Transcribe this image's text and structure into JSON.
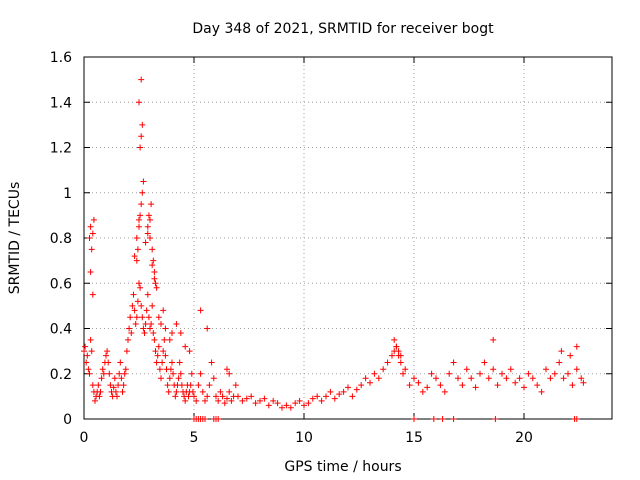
{
  "chart_data": {
    "type": "scatter",
    "title": "Day 348 of 2021, SRMTID for receiver bogt",
    "xlabel": "GPS time / hours",
    "ylabel": "SRMTID / TECUs",
    "xlim": [
      0,
      24
    ],
    "ylim": [
      0,
      1.6
    ],
    "x_ticks": [
      0,
      5,
      10,
      15,
      20
    ],
    "y_ticks": [
      0,
      0.2,
      0.4,
      0.6,
      0.8,
      1,
      1.2,
      1.4,
      1.6
    ],
    "x_tick_labels": [
      "0",
      "5",
      "10",
      "15",
      "20"
    ],
    "y_tick_labels": [
      "0",
      "0.2",
      "0.4",
      "0.6",
      "0.8",
      "1",
      "1.2",
      "1.4",
      "1.6"
    ],
    "grid": true,
    "marker": "+",
    "marker_color": "#ff0000",
    "series": [
      {
        "name": "SRMTID",
        "x": [
          0.0,
          0.05,
          0.1,
          0.15,
          0.2,
          0.25,
          0.3,
          0.35,
          0.4,
          0.45,
          0.5,
          0.55,
          0.6,
          0.65,
          0.7,
          0.75,
          0.8,
          0.85,
          0.9,
          0.95,
          1.0,
          1.05,
          1.1,
          1.15,
          1.2,
          1.25,
          1.3,
          1.35,
          1.4,
          1.45,
          1.5,
          1.55,
          1.6,
          1.65,
          1.7,
          1.75,
          1.8,
          1.85,
          1.9,
          1.95,
          2.0,
          2.05,
          2.1,
          2.15,
          2.2,
          2.25,
          2.3,
          2.35,
          2.4,
          2.45,
          2.5,
          2.55,
          2.6,
          2.65,
          2.7,
          2.75,
          2.8,
          2.85,
          2.9,
          2.95,
          3.0,
          3.05,
          3.1,
          3.15,
          3.2,
          3.25,
          3.3,
          3.35,
          3.4,
          3.45,
          3.5,
          3.55,
          3.6,
          3.65,
          3.7,
          3.75,
          3.8,
          3.85,
          3.9,
          3.95,
          4.0,
          4.05,
          4.1,
          4.15,
          4.2,
          4.25,
          4.3,
          4.35,
          4.4,
          4.45,
          4.5,
          4.55,
          4.6,
          4.65,
          4.7,
          4.75,
          4.8,
          4.85,
          4.9,
          4.95,
          5.0,
          5.1,
          5.2,
          5.3,
          5.4,
          5.5,
          5.6,
          5.7,
          5.8,
          5.9,
          6.0,
          6.1,
          6.2,
          6.3,
          6.4,
          6.5,
          6.6,
          6.7,
          6.8,
          6.9,
          7.0,
          7.2,
          7.4,
          7.6,
          7.8,
          8.0,
          8.2,
          8.4,
          8.6,
          8.8,
          9.0,
          9.2,
          9.4,
          9.6,
          9.8,
          10.0,
          10.2,
          10.4,
          10.6,
          10.8,
          11.0,
          11.2,
          11.4,
          11.6,
          11.8,
          12.0,
          12.2,
          12.4,
          12.6,
          12.8,
          13.0,
          13.2,
          13.4,
          13.6,
          13.8,
          14.0,
          14.1,
          14.2,
          14.3,
          14.4,
          14.5,
          14.6,
          14.8,
          15.0,
          15.2,
          15.4,
          15.6,
          15.8,
          16.0,
          16.2,
          16.4,
          16.6,
          16.8,
          17.0,
          17.2,
          17.4,
          17.6,
          17.8,
          18.0,
          18.2,
          18.4,
          18.6,
          18.8,
          19.0,
          19.2,
          19.4,
          19.6,
          19.8,
          20.0,
          20.2,
          20.4,
          20.6,
          20.8,
          21.0,
          21.2,
          21.4,
          21.6,
          21.8,
          22.0,
          22.2,
          22.4,
          22.6,
          22.7,
          0.25,
          0.3,
          0.35,
          0.4,
          0.45,
          0.3,
          0.4,
          2.4,
          2.45,
          2.5,
          2.55,
          2.6,
          2.65,
          2.7,
          2.55,
          2.6,
          2.65,
          2.5,
          2.6,
          2.9,
          2.95,
          3.0,
          3.05,
          3.1,
          3.15,
          3.2,
          3.25,
          2.8,
          2.9,
          3.0,
          3.1,
          3.2,
          3.3,
          2.3,
          2.4,
          2.5,
          3.4,
          3.5,
          3.6,
          3.7,
          3.9,
          4.0,
          4.2,
          4.4,
          4.6,
          4.8,
          5.3,
          5.6,
          6.5,
          6.6,
          14.1,
          14.2,
          14.3,
          14.4,
          18.6,
          21.7,
          22.1,
          22.4,
          5.0,
          5.1,
          5.2,
          5.3,
          5.4,
          5.5,
          5.9,
          6.0,
          6.1,
          15.0,
          15.9,
          16.3,
          16.8,
          18.7,
          22.3,
          22.4
        ],
        "y": [
          0.3,
          0.32,
          0.25,
          0.28,
          0.22,
          0.2,
          0.35,
          0.3,
          0.15,
          0.12,
          0.08,
          0.1,
          0.12,
          0.15,
          0.1,
          0.12,
          0.18,
          0.22,
          0.2,
          0.25,
          0.28,
          0.3,
          0.25,
          0.2,
          0.15,
          0.12,
          0.1,
          0.14,
          0.18,
          0.12,
          0.1,
          0.15,
          0.2,
          0.25,
          0.18,
          0.12,
          0.15,
          0.2,
          0.22,
          0.3,
          0.35,
          0.4,
          0.45,
          0.38,
          0.5,
          0.55,
          0.48,
          0.42,
          0.45,
          0.52,
          0.6,
          0.58,
          0.5,
          0.45,
          0.4,
          0.38,
          0.42,
          0.48,
          0.55,
          0.45,
          0.4,
          0.42,
          0.5,
          0.38,
          0.35,
          0.3,
          0.25,
          0.28,
          0.32,
          0.22,
          0.18,
          0.25,
          0.3,
          0.35,
          0.28,
          0.22,
          0.15,
          0.12,
          0.18,
          0.22,
          0.25,
          0.2,
          0.15,
          0.1,
          0.12,
          0.15,
          0.18,
          0.25,
          0.2,
          0.15,
          0.12,
          0.1,
          0.08,
          0.12,
          0.15,
          0.1,
          0.12,
          0.15,
          0.2,
          0.12,
          0.1,
          0.08,
          0.15,
          0.2,
          0.12,
          0.08,
          0.1,
          0.15,
          0.25,
          0.18,
          0.1,
          0.08,
          0.12,
          0.1,
          0.07,
          0.09,
          0.12,
          0.08,
          0.1,
          0.15,
          0.1,
          0.08,
          0.09,
          0.1,
          0.07,
          0.08,
          0.09,
          0.06,
          0.08,
          0.07,
          0.05,
          0.06,
          0.05,
          0.07,
          0.08,
          0.06,
          0.07,
          0.09,
          0.1,
          0.08,
          0.1,
          0.12,
          0.09,
          0.11,
          0.12,
          0.14,
          0.1,
          0.13,
          0.15,
          0.18,
          0.16,
          0.2,
          0.18,
          0.22,
          0.25,
          0.28,
          0.3,
          0.32,
          0.28,
          0.25,
          0.2,
          0.22,
          0.15,
          0.18,
          0.16,
          0.12,
          0.14,
          0.2,
          0.18,
          0.15,
          0.12,
          0.2,
          0.25,
          0.18,
          0.15,
          0.22,
          0.18,
          0.14,
          0.2,
          0.25,
          0.18,
          0.22,
          0.15,
          0.2,
          0.18,
          0.22,
          0.16,
          0.18,
          0.14,
          0.2,
          0.18,
          0.15,
          0.12,
          0.22,
          0.18,
          0.2,
          0.25,
          0.18,
          0.2,
          0.15,
          0.22,
          0.18,
          0.16,
          0.8,
          0.85,
          0.75,
          0.82,
          0.88,
          0.65,
          0.55,
          0.7,
          0.75,
          0.85,
          0.9,
          0.95,
          1.0,
          1.05,
          1.2,
          1.25,
          1.3,
          1.4,
          1.5,
          0.85,
          0.9,
          0.8,
          0.95,
          0.75,
          0.7,
          0.65,
          0.6,
          0.78,
          0.82,
          0.88,
          0.68,
          0.62,
          0.58,
          0.72,
          0.8,
          0.88,
          0.45,
          0.42,
          0.48,
          0.4,
          0.35,
          0.38,
          0.42,
          0.38,
          0.32,
          0.3,
          0.48,
          0.4,
          0.22,
          0.2,
          0.35,
          0.32,
          0.3,
          0.28,
          0.35,
          0.3,
          0.28,
          0.32,
          0.0,
          0.0,
          0.0,
          0.0,
          0.0,
          0.0,
          0.0,
          0.0,
          0.0,
          0.0,
          0.0,
          0.0,
          0.0,
          0.0,
          0.0,
          0.0
        ]
      }
    ]
  }
}
